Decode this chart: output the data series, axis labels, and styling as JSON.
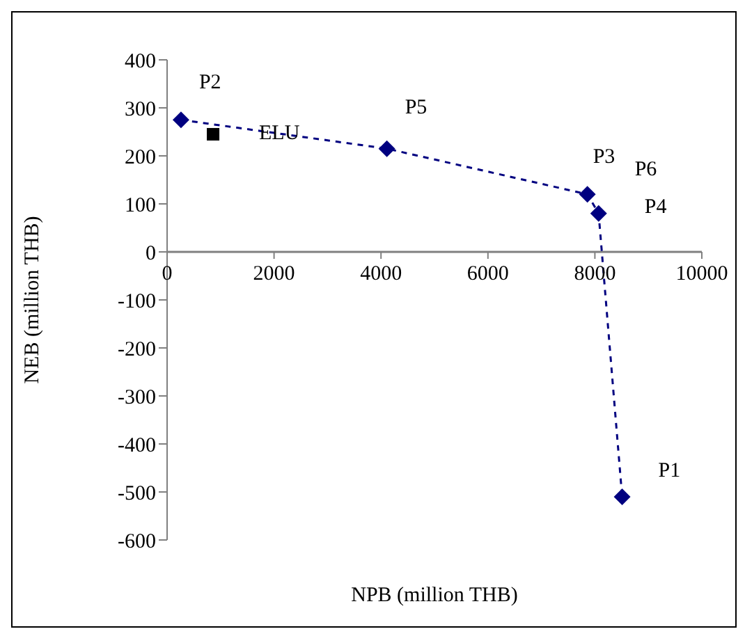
{
  "chart_data": {
    "type": "scatter",
    "xlabel": "NPB (million THB)",
    "ylabel": "NEB (million THB)",
    "xlim": [
      0,
      10000
    ],
    "xticks": [
      0,
      2000,
      4000,
      6000,
      8000,
      10000
    ],
    "ylim": [
      -600,
      400
    ],
    "yticks": [
      -600,
      -500,
      -400,
      -300,
      -200,
      -100,
      0,
      100,
      200,
      300,
      400
    ],
    "grid": false,
    "legend": false,
    "series": [
      {
        "type": "line",
        "color": "#000080",
        "marker": "diamond",
        "line_style": "dashed",
        "x": [
          260,
          4110,
          7860,
          8070,
          8510
        ],
        "values": [
          275,
          215,
          120,
          80,
          -510
        ]
      },
      {
        "type": "scatter",
        "color": "#000000",
        "marker": "square",
        "x": [
          860
        ],
        "values": [
          245
        ]
      }
    ],
    "annotations": [
      {
        "text": "P2",
        "x": 260,
        "y": 275
      },
      {
        "text": "ELU",
        "x": 860,
        "y": 245
      },
      {
        "text": "P5",
        "x": 4110,
        "y": 215
      },
      {
        "text": "P3",
        "x": 7860,
        "y": 120
      },
      {
        "text": "P6",
        "x": 7860,
        "y": 120
      },
      {
        "text": "P4",
        "x": 8070,
        "y": 80
      },
      {
        "text": "P1",
        "x": 8510,
        "y": -510
      }
    ]
  }
}
